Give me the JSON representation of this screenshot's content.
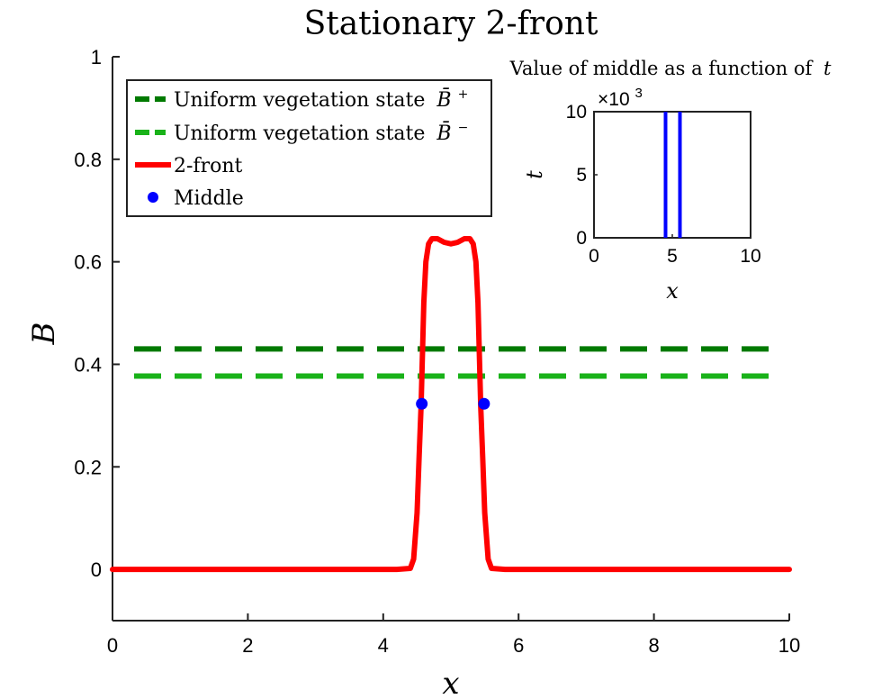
{
  "chart_data": [
    {
      "type": "line",
      "title": "Stationary 2-front",
      "xlabel": "x",
      "ylabel": "B",
      "xlim": [
        0,
        10
      ],
      "ylim": [
        -0.1,
        1
      ],
      "xticks": [
        0,
        2,
        4,
        6,
        8,
        10
      ],
      "xtick_labels": [
        "0",
        "2",
        "4",
        "6",
        "8",
        "10"
      ],
      "yticks": [
        0,
        0.2,
        0.4,
        0.6,
        0.8,
        1
      ],
      "ytick_labels": [
        "0",
        "0.2",
        "0.4",
        "0.6",
        "0.8",
        "1"
      ],
      "grid": false,
      "legend_position": "top-left",
      "legend": [
        {
          "label": "Uniform vegetation state",
          "symbol": "B̄",
          "superscript": "+",
          "style": "dashed",
          "color": "#007a00"
        },
        {
          "label": "Uniform vegetation state",
          "symbol": "B̄",
          "superscript": "−",
          "style": "dashed",
          "color": "#19b219"
        },
        {
          "label": "2-front",
          "style": "solid",
          "color": "#ff0000"
        },
        {
          "label": "Middle",
          "style": "marker",
          "color": "#0000ff"
        }
      ],
      "series": [
        {
          "name": "Uniform vegetation state B̄+",
          "kind": "hline",
          "y": 0.43,
          "color": "#007a00"
        },
        {
          "name": "Uniform vegetation state B̄−",
          "kind": "hline",
          "y": 0.377,
          "color": "#19b219"
        },
        {
          "name": "2-front",
          "color": "#ff0000",
          "points": [
            [
              0,
              0
            ],
            [
              4.2,
              0
            ],
            [
              4.4,
              0.002
            ],
            [
              4.45,
              0.02
            ],
            [
              4.5,
              0.11
            ],
            [
              4.53,
              0.22
            ],
            [
              4.56,
              0.32
            ],
            [
              4.58,
              0.42
            ],
            [
              4.6,
              0.52
            ],
            [
              4.63,
              0.6
            ],
            [
              4.67,
              0.635
            ],
            [
              4.72,
              0.645
            ],
            [
              4.8,
              0.645
            ],
            [
              4.9,
              0.638
            ],
            [
              5.0,
              0.635
            ],
            [
              5.1,
              0.638
            ],
            [
              5.2,
              0.645
            ],
            [
              5.28,
              0.645
            ],
            [
              5.33,
              0.635
            ],
            [
              5.37,
              0.6
            ],
            [
              5.4,
              0.52
            ],
            [
              5.42,
              0.42
            ],
            [
              5.44,
              0.32
            ],
            [
              5.47,
              0.22
            ],
            [
              5.5,
              0.11
            ],
            [
              5.55,
              0.02
            ],
            [
              5.6,
              0.002
            ],
            [
              5.8,
              0
            ],
            [
              10,
              0
            ]
          ]
        },
        {
          "name": "Middle",
          "kind": "markers",
          "color": "#0000ff",
          "points": [
            [
              4.57,
              0.323
            ],
            [
              5.49,
              0.323
            ]
          ]
        }
      ]
    },
    {
      "type": "line",
      "title": "Value of middle as a function of",
      "title_symbol": "t",
      "xlabel": "x",
      "ylabel": "t",
      "xlim": [
        0,
        10
      ],
      "ylim": [
        0,
        10
      ],
      "xticks": [
        0,
        5,
        10
      ],
      "xtick_labels": [
        "0",
        "5",
        "10"
      ],
      "yticks": [
        0,
        5,
        10
      ],
      "ytick_labels": [
        "0",
        "5",
        "10"
      ],
      "y_exponent_base": "×10",
      "y_exponent": "3",
      "series": [
        {
          "color": "#0000ff",
          "points": [
            [
              4.57,
              0
            ],
            [
              4.57,
              10
            ]
          ]
        },
        {
          "color": "#0000ff",
          "points": [
            [
              5.49,
              0
            ],
            [
              5.49,
              10
            ]
          ]
        }
      ]
    }
  ]
}
